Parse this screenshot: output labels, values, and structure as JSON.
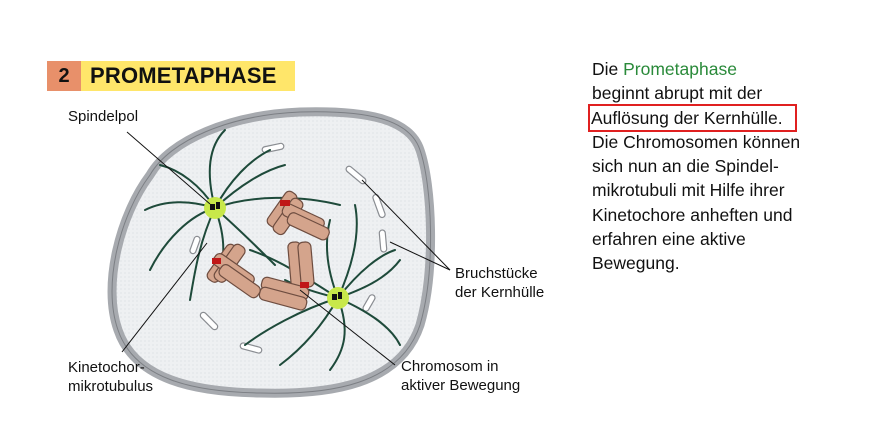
{
  "header": {
    "number": "2",
    "title": "PROMETAPHASE"
  },
  "labels": {
    "spindle_pole": "Spindelpol",
    "kinetochore_mt": [
      "Kinetochor-",
      "mikrotubulus"
    ],
    "envelope_fragments": [
      "Bruchstücke",
      "der Kernhülle"
    ],
    "chromosome_moving": [
      "Chromosom in",
      "aktiver Bewegung"
    ]
  },
  "description": {
    "line1_a": "Die ",
    "line1_b": "Prometaphase",
    "line2": "beginnt abrupt mit der",
    "line3_boxed": "Auflösung der Kernhülle.",
    "line4": "Die Chromosomen können",
    "line5": "sich nun an die Spindel-",
    "line6": "mikrotubuli mit Hilfe ihrer",
    "line7": "Kinetochore anheften und",
    "line8": "erfahren eine aktive",
    "line9": "Bewegung."
  },
  "colors": {
    "number_bg": "#e8906a",
    "title_bg": "#ffe66a",
    "highlight_box": "#e02020",
    "prometaphase_word": "#2a8a3a",
    "spindle_pole": "#c8e84a",
    "microtubule": "#1e4a3a",
    "chromosome": "#d4a48c",
    "kinetochore": "#c01818"
  }
}
